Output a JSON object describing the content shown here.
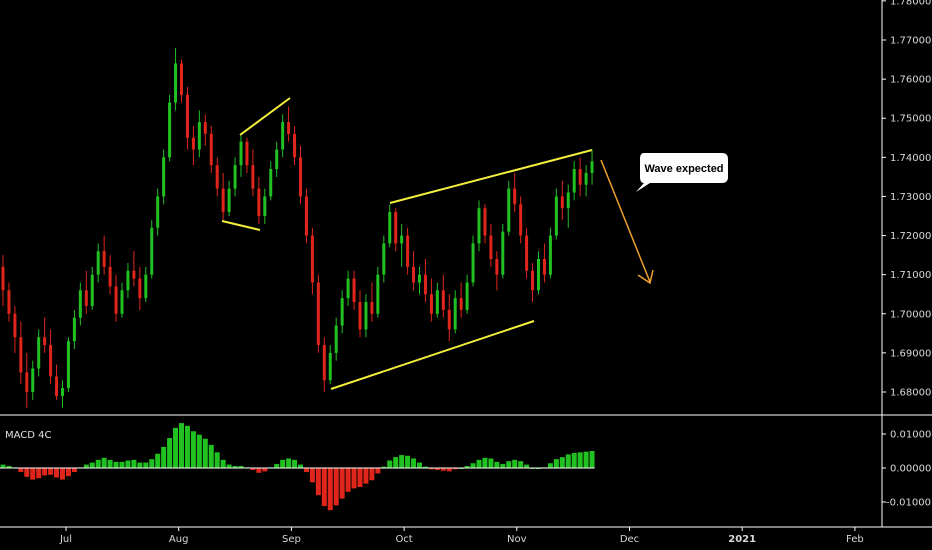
{
  "chart_data": {
    "type": "candlestick",
    "price_axis": {
      "range": [
        1.6745,
        1.7825
      ],
      "ticks": [
        "1.68000",
        "1.69000",
        "1.70000",
        "1.71000",
        "1.72000",
        "1.73000",
        "1.74000",
        "1.75000",
        "1.76000",
        "1.77000",
        "1.78000"
      ]
    },
    "time_axis": {
      "labels": [
        "Jul",
        "Aug",
        "Sep",
        "Oct",
        "Nov",
        "Dec",
        "2021",
        "Feb"
      ],
      "bold_labels": [
        "2021"
      ]
    },
    "colors": {
      "up": "#22c122",
      "down": "#e0261b",
      "trendline": "#f4ee3d",
      "arrow": "#f0a030",
      "grid": "#ffffff"
    },
    "price_series": [
      [
        1.712,
        1.715,
        1.702,
        1.706
      ],
      [
        1.706,
        1.708,
        1.698,
        1.7
      ],
      [
        1.7,
        1.702,
        1.69,
        1.694
      ],
      [
        1.694,
        1.698,
        1.682,
        1.685
      ],
      [
        1.685,
        1.69,
        1.676,
        1.68
      ],
      [
        1.68,
        1.688,
        1.678,
        1.686
      ],
      [
        1.686,
        1.696,
        1.684,
        1.694
      ],
      [
        1.694,
        1.699,
        1.69,
        1.692
      ],
      [
        1.692,
        1.696,
        1.682,
        1.684
      ],
      [
        1.684,
        1.687,
        1.678,
        1.679
      ],
      [
        1.679,
        1.683,
        1.676,
        1.681
      ],
      [
        1.681,
        1.694,
        1.68,
        1.693
      ],
      [
        1.693,
        1.701,
        1.691,
        1.699
      ],
      [
        1.699,
        1.708,
        1.697,
        1.706
      ],
      [
        1.706,
        1.711,
        1.7,
        1.702
      ],
      [
        1.702,
        1.712,
        1.701,
        1.71
      ],
      [
        1.71,
        1.718,
        1.708,
        1.716
      ],
      [
        1.716,
        1.72,
        1.71,
        1.712
      ],
      [
        1.712,
        1.715,
        1.705,
        1.707
      ],
      [
        1.707,
        1.71,
        1.698,
        1.7
      ],
      [
        1.7,
        1.708,
        1.699,
        1.706
      ],
      [
        1.706,
        1.713,
        1.704,
        1.711
      ],
      [
        1.711,
        1.716,
        1.707,
        1.709
      ],
      [
        1.709,
        1.712,
        1.701,
        1.704
      ],
      [
        1.704,
        1.712,
        1.703,
        1.71
      ],
      [
        1.71,
        1.724,
        1.709,
        1.722
      ],
      [
        1.722,
        1.732,
        1.72,
        1.73
      ],
      [
        1.73,
        1.742,
        1.728,
        1.74
      ],
      [
        1.74,
        1.756,
        1.739,
        1.754
      ],
      [
        1.754,
        1.768,
        1.752,
        1.764
      ],
      [
        1.764,
        1.765,
        1.754,
        1.756
      ],
      [
        1.756,
        1.758,
        1.742,
        1.745
      ],
      [
        1.745,
        1.748,
        1.738,
        1.742
      ],
      [
        1.742,
        1.752,
        1.74,
        1.749
      ],
      [
        1.749,
        1.751,
        1.743,
        1.746
      ],
      [
        1.746,
        1.748,
        1.736,
        1.738
      ],
      [
        1.738,
        1.74,
        1.73,
        1.732
      ],
      [
        1.732,
        1.736,
        1.724,
        1.726
      ],
      [
        1.726,
        1.734,
        1.725,
        1.732
      ],
      [
        1.732,
        1.74,
        1.73,
        1.738
      ],
      [
        1.738,
        1.746,
        1.735,
        1.744
      ],
      [
        1.744,
        1.745,
        1.736,
        1.738
      ],
      [
        1.738,
        1.742,
        1.73,
        1.732
      ],
      [
        1.732,
        1.735,
        1.723,
        1.725
      ],
      [
        1.725,
        1.732,
        1.723,
        1.73
      ],
      [
        1.73,
        1.739,
        1.729,
        1.737
      ],
      [
        1.737,
        1.744,
        1.735,
        1.742
      ],
      [
        1.742,
        1.751,
        1.74,
        1.749
      ],
      [
        1.749,
        1.753,
        1.744,
        1.746
      ],
      [
        1.746,
        1.748,
        1.738,
        1.74
      ],
      [
        1.74,
        1.743,
        1.728,
        1.73
      ],
      [
        1.73,
        1.732,
        1.718,
        1.72
      ],
      [
        1.72,
        1.722,
        1.705,
        1.708
      ],
      [
        1.708,
        1.71,
        1.69,
        1.692
      ],
      [
        1.692,
        1.694,
        1.68,
        1.683
      ],
      [
        1.683,
        1.692,
        1.682,
        1.69
      ],
      [
        1.69,
        1.699,
        1.688,
        1.697
      ],
      [
        1.697,
        1.706,
        1.695,
        1.704
      ],
      [
        1.704,
        1.711,
        1.702,
        1.709
      ],
      [
        1.709,
        1.711,
        1.701,
        1.703
      ],
      [
        1.703,
        1.706,
        1.694,
        1.696
      ],
      [
        1.696,
        1.705,
        1.694,
        1.703
      ],
      [
        1.703,
        1.708,
        1.698,
        1.7
      ],
      [
        1.7,
        1.712,
        1.699,
        1.71
      ],
      [
        1.71,
        1.72,
        1.708,
        1.718
      ],
      [
        1.718,
        1.728,
        1.717,
        1.726
      ],
      [
        1.726,
        1.727,
        1.716,
        1.718
      ],
      [
        1.718,
        1.723,
        1.712,
        1.72
      ],
      [
        1.72,
        1.722,
        1.71,
        1.712
      ],
      [
        1.712,
        1.716,
        1.706,
        1.708
      ],
      [
        1.708,
        1.712,
        1.705,
        1.71
      ],
      [
        1.71,
        1.714,
        1.703,
        1.705
      ],
      [
        1.705,
        1.709,
        1.698,
        1.7
      ],
      [
        1.7,
        1.708,
        1.699,
        1.706
      ],
      [
        1.706,
        1.71,
        1.699,
        1.701
      ],
      [
        1.701,
        1.705,
        1.693,
        1.696
      ],
      [
        1.696,
        1.706,
        1.695,
        1.704
      ],
      [
        1.704,
        1.708,
        1.699,
        1.701
      ],
      [
        1.701,
        1.71,
        1.7,
        1.708
      ],
      [
        1.708,
        1.72,
        1.707,
        1.718
      ],
      [
        1.718,
        1.729,
        1.716,
        1.727
      ],
      [
        1.727,
        1.728,
        1.718,
        1.72
      ],
      [
        1.72,
        1.723,
        1.712,
        1.714
      ],
      [
        1.714,
        1.716,
        1.706,
        1.71
      ],
      [
        1.71,
        1.723,
        1.709,
        1.721
      ],
      [
        1.721,
        1.734,
        1.72,
        1.732
      ],
      [
        1.732,
        1.736,
        1.726,
        1.728
      ],
      [
        1.728,
        1.73,
        1.718,
        1.72
      ],
      [
        1.72,
        1.722,
        1.709,
        1.711
      ],
      [
        1.711,
        1.713,
        1.703,
        1.706
      ],
      [
        1.706,
        1.716,
        1.705,
        1.714
      ],
      [
        1.714,
        1.718,
        1.708,
        1.71
      ],
      [
        1.71,
        1.722,
        1.709,
        1.72
      ],
      [
        1.72,
        1.732,
        1.719,
        1.73
      ],
      [
        1.73,
        1.734,
        1.724,
        1.727
      ],
      [
        1.727,
        1.733,
        1.722,
        1.731
      ],
      [
        1.731,
        1.739,
        1.729,
        1.737
      ],
      [
        1.737,
        1.74,
        1.73,
        1.733
      ],
      [
        1.733,
        1.738,
        1.73,
        1.736
      ],
      [
        1.736,
        1.742,
        1.733,
        1.739
      ]
    ],
    "macd_label": "MACD 4C",
    "macd_axis": {
      "range": [
        -0.0148,
        0.015
      ],
      "ticks": [
        "-0.01000",
        "0.00000",
        "0.01000"
      ]
    },
    "macd_values": [
      0.001,
      0.0006,
      0.0002,
      -0.0012,
      -0.0026,
      -0.0034,
      -0.003,
      -0.0022,
      -0.002,
      -0.0028,
      -0.0034,
      -0.0024,
      -0.0012,
      0.0002,
      0.001,
      0.0016,
      0.0024,
      0.003,
      0.0024,
      0.0018,
      0.0018,
      0.0022,
      0.0024,
      0.0016,
      0.0016,
      0.0026,
      0.0042,
      0.0062,
      0.0088,
      0.0118,
      0.0132,
      0.0124,
      0.0108,
      0.0098,
      0.0086,
      0.0068,
      0.0046,
      0.0024,
      0.001,
      0.0006,
      0.0006,
      0.0002,
      -0.0006,
      -0.0014,
      -0.001,
      0.0002,
      0.0012,
      0.0024,
      0.0028,
      0.0024,
      0.001,
      -0.0012,
      -0.0042,
      -0.008,
      -0.0112,
      -0.0124,
      -0.011,
      -0.009,
      -0.007,
      -0.006,
      -0.0056,
      -0.0046,
      -0.0036,
      -0.0016,
      0.0004,
      0.0022,
      0.0032,
      0.0038,
      0.0036,
      0.0028,
      0.0016,
      0.0004,
      -0.0004,
      -0.0006,
      -0.0008,
      -0.001,
      -0.0004,
      0.0,
      0.0006,
      0.0014,
      0.0024,
      0.003,
      0.0028,
      0.0018,
      0.0012,
      0.002,
      0.0024,
      0.002,
      0.001,
      0.0,
      0.0,
      0.0002,
      0.0014,
      0.0026,
      0.0032,
      0.004,
      0.0044,
      0.0046,
      0.0048,
      0.005
    ],
    "annotations": {
      "callout_text": "Wave expected"
    }
  }
}
